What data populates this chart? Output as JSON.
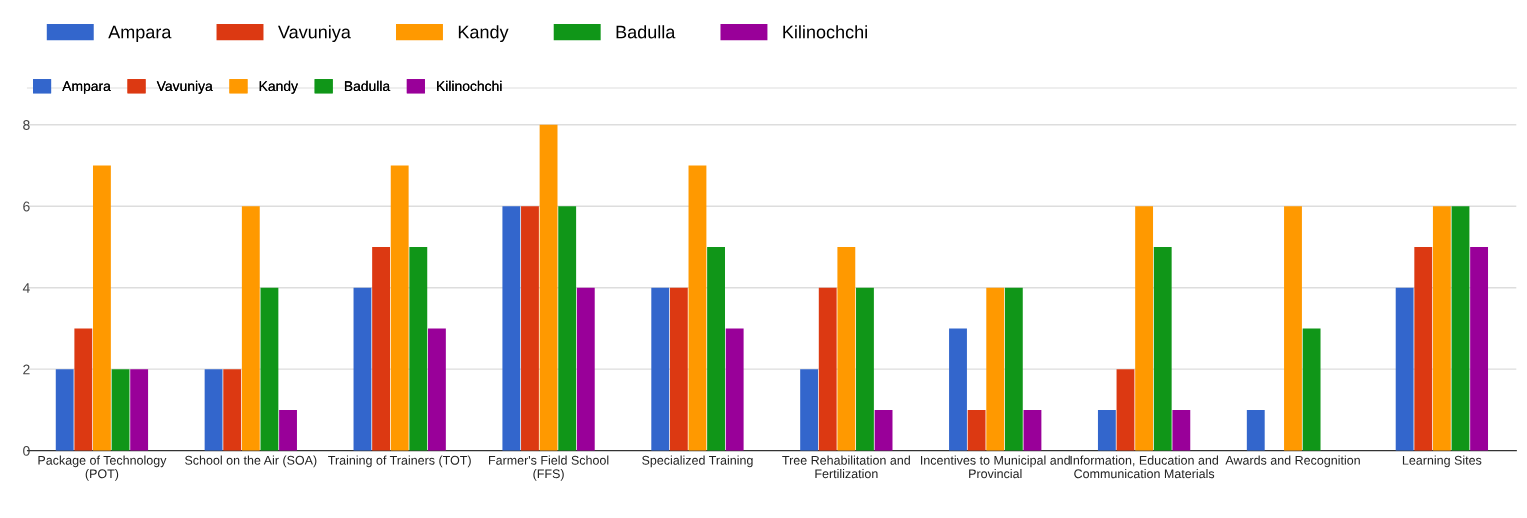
{
  "chart_data": {
    "type": "bar",
    "categories": [
      "Package of Technology\n(POT)",
      "School on the Air (SOA)",
      "Training of Trainers (TOT)",
      "Farmer's Field School\n(FFS)",
      "Specialized Training",
      "Tree Rehabilitation and\nFertilization",
      "Incentives to Municipal and\nProvincial",
      "Information, Education and\nCommunication Materials",
      "Awards and Recognition",
      "Learning Sites"
    ],
    "series": [
      {
        "name": "Ampara",
        "color": "#3366cc",
        "values": [
          2,
          2,
          4,
          6,
          4,
          2,
          3,
          1,
          1,
          4
        ]
      },
      {
        "name": "Vavuniya",
        "color": "#dc3912",
        "values": [
          3,
          2,
          5,
          6,
          4,
          4,
          1,
          2,
          0,
          5
        ]
      },
      {
        "name": "Kandy",
        "color": "#ff9900",
        "values": [
          7,
          6,
          7,
          8,
          7,
          5,
          4,
          6,
          6,
          6
        ]
      },
      {
        "name": "Badulla",
        "color": "#109618",
        "values": [
          2,
          4,
          5,
          6,
          5,
          4,
          4,
          5,
          3,
          6
        ]
      },
      {
        "name": "Kilinochchi",
        "color": "#990099",
        "values": [
          2,
          1,
          3,
          4,
          3,
          1,
          1,
          1,
          0,
          5
        ]
      }
    ],
    "ylim": [
      0,
      8.9
    ],
    "yticks": [
      0,
      2,
      4,
      6,
      8
    ],
    "grid": "y",
    "legend": "top left"
  }
}
